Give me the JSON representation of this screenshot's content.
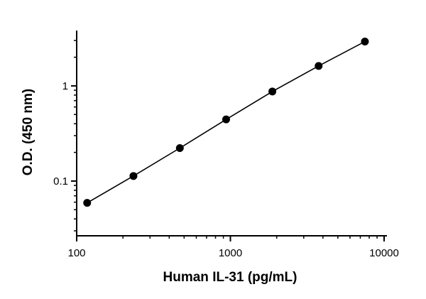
{
  "chart_data": {
    "type": "scatter",
    "title": "",
    "xlabel": "Human IL-31 (pg/mL)",
    "ylabel": "O.D. (450 nm)",
    "xscale": "log",
    "yscale": "log",
    "xlim": [
      100,
      10000
    ],
    "ylim": [
      0.03,
      3.5
    ],
    "x_ticks": [
      100,
      1000,
      10000
    ],
    "x_tick_labels": [
      "100",
      "1000",
      "10000"
    ],
    "y_ticks": [
      0.1,
      1
    ],
    "y_tick_labels": [
      "0.1",
      "1"
    ],
    "grid": false,
    "legend": "none",
    "series": [
      {
        "x": [
          117,
          234,
          469,
          938,
          1875,
          3750,
          7500
        ],
        "y": [
          0.059,
          0.113,
          0.222,
          0.444,
          0.873,
          1.62,
          2.92
        ],
        "fit_line": true,
        "color": "#000000"
      }
    ]
  }
}
